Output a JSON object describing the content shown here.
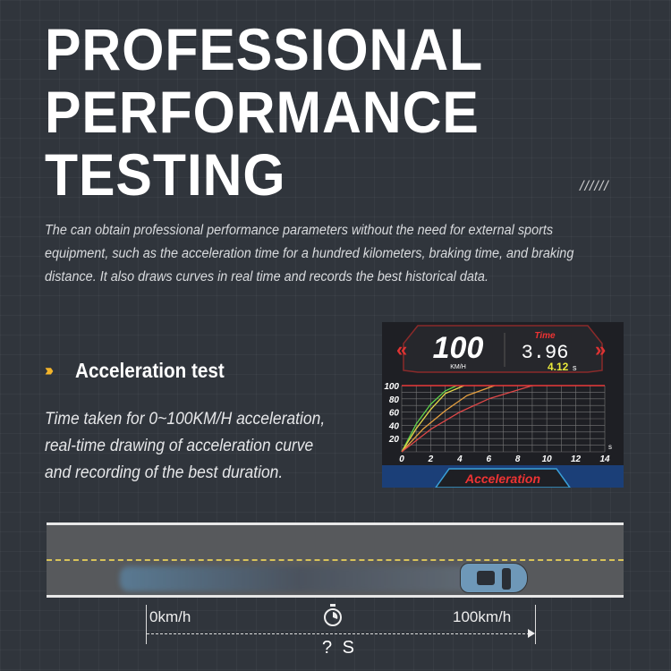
{
  "title_lines": [
    "PROFESSIONAL",
    "PERFORMANCE",
    "TESTING"
  ],
  "hatch": "//////",
  "description": "The can obtain professional performance parameters without the need for external sports equipment, such as the acceleration time for a hundred kilometers, braking time, and braking distance. It also draws curves in real time and records the best historical data.",
  "section": {
    "icon": "double-chevron-right-icon",
    "heading": "Acceleration test",
    "text": "Time taken for 0~100KM/H acceleration, real-time drawing of acceleration curve and recording of the best duration."
  },
  "screen": {
    "speed": "100",
    "speed_unit": "KM/H",
    "time_label": "Time",
    "time": "3.96",
    "best": "4.12",
    "best_unit": "s",
    "mode": "Acceleration"
  },
  "chart_data": {
    "type": "line",
    "xlabel": "s",
    "xlim": [
      0,
      14
    ],
    "ylim": [
      0,
      100
    ],
    "xticks": [
      "0",
      "2",
      "4",
      "6",
      "8",
      "10",
      "12",
      "14"
    ],
    "yticks": [
      "20",
      "40",
      "60",
      "80",
      "100"
    ],
    "grid": true,
    "series": [
      {
        "color": "#5fd34a",
        "x": [
          0,
          1,
          2,
          3,
          3.8
        ],
        "y": [
          0,
          42,
          72,
          92,
          100
        ]
      },
      {
        "color": "#e6d84a",
        "x": [
          0,
          1,
          2,
          3,
          4.3
        ],
        "y": [
          0,
          35,
          64,
          88,
          100
        ]
      },
      {
        "color": "#e6a040",
        "x": [
          0,
          1.5,
          3,
          4.5,
          6.4
        ],
        "y": [
          0,
          35,
          62,
          85,
          100
        ]
      },
      {
        "color": "#e04848",
        "x": [
          0,
          2,
          4,
          6,
          9
        ],
        "y": [
          0,
          34,
          60,
          80,
          100
        ]
      }
    ],
    "reference_line": {
      "y": 100,
      "color": "#e83a3a"
    }
  },
  "road": {
    "start_label": "0km/h",
    "end_label": "100km/h",
    "duration_label": "? S",
    "stopwatch_icon": "stopwatch-icon"
  }
}
